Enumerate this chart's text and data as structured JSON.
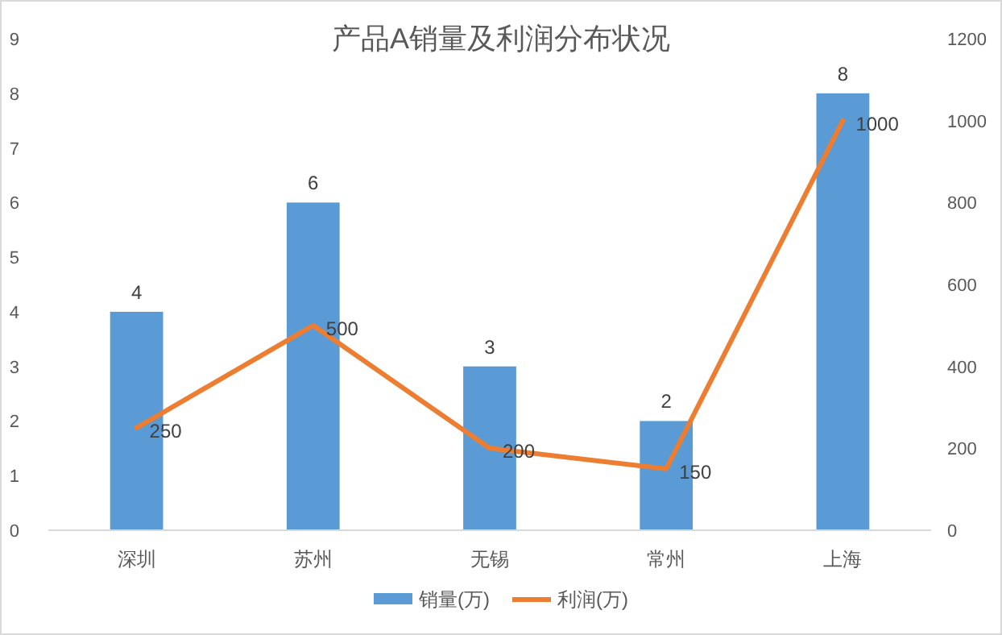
{
  "chart_data": {
    "type": "bar",
    "title": "产品A销量及利润分布状况",
    "categories": [
      "深圳",
      "苏州",
      "无锡",
      "常州",
      "上海"
    ],
    "series": [
      {
        "name": "销量(万)",
        "color": "#5b9bd5",
        "values": [
          4,
          6,
          3,
          2,
          8
        ]
      },
      {
        "name": "利润(万)",
        "type": "line",
        "axis": "y2",
        "color": "#ed7d31",
        "values": [
          250,
          500,
          200,
          150,
          1000
        ]
      }
    ],
    "ylim": [
      0,
      9
    ],
    "yticks": [
      0,
      1,
      2,
      3,
      4,
      5,
      6,
      7,
      8,
      9
    ],
    "y2lim": [
      0,
      1200
    ],
    "y2ticks": [
      0,
      200,
      400,
      600,
      800,
      1000,
      1200
    ],
    "data_labels": true,
    "legend": "bottom"
  }
}
